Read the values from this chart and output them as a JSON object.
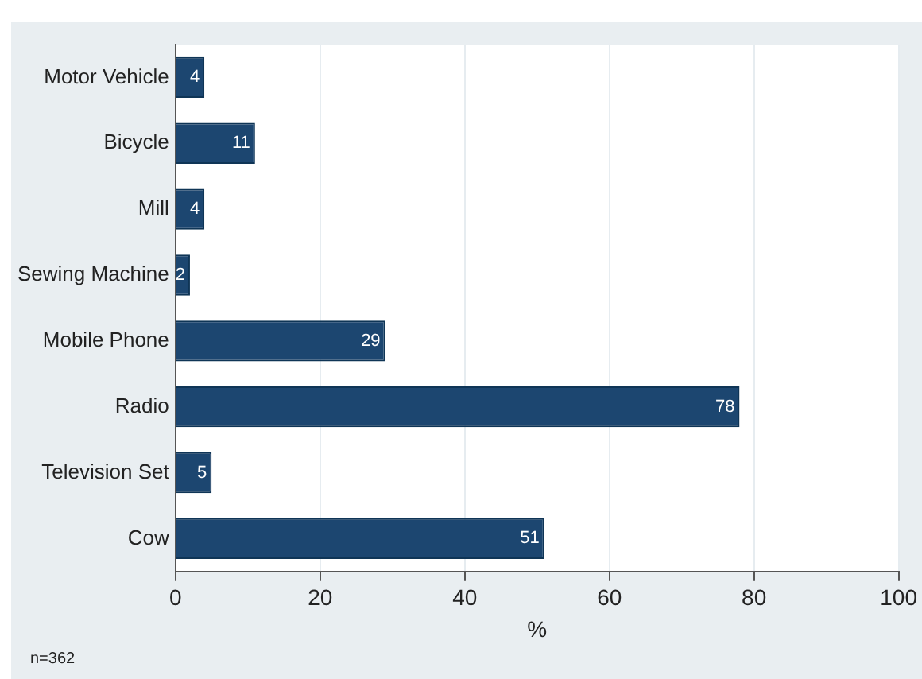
{
  "chart_data": {
    "type": "bar",
    "orientation": "horizontal",
    "xlabel": "%",
    "categories": [
      "Motor Vehicle",
      "Bicycle",
      "Mill",
      "Sewing Machine",
      "Mobile Phone",
      "Radio",
      "Television Set",
      "Cow"
    ],
    "values": [
      4,
      11,
      4,
      2,
      29,
      78,
      5,
      51
    ],
    "color": "#1c4670",
    "xlim": [
      0,
      100
    ],
    "xticks": [
      0,
      20,
      40,
      60,
      80,
      100
    ],
    "grid": "x",
    "data_labels": true,
    "legend": false,
    "annotations": [
      "n=362"
    ]
  }
}
